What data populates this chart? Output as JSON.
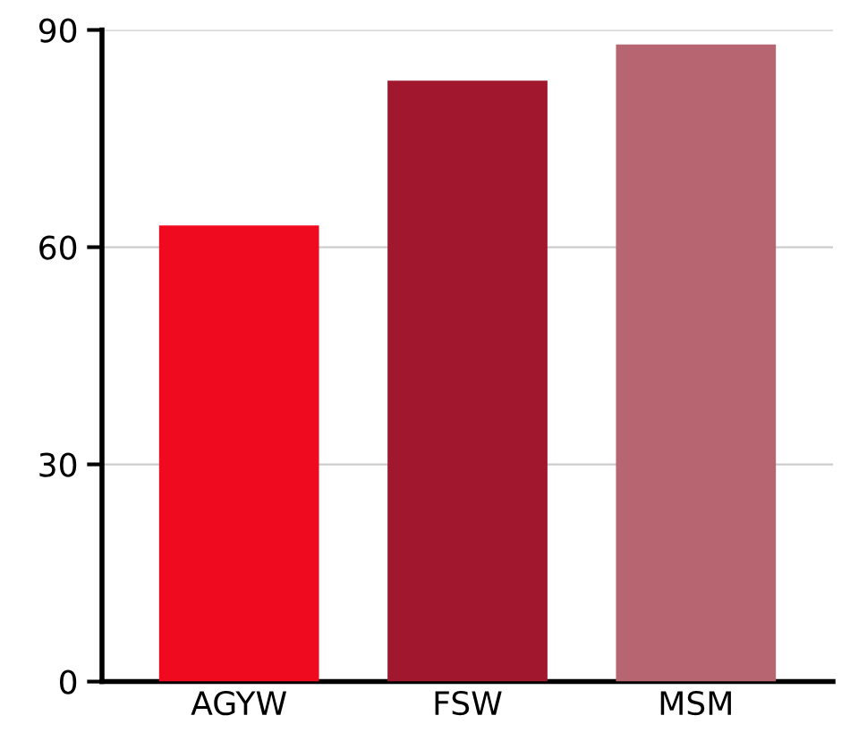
{
  "chart_data": {
    "type": "bar",
    "categories": [
      "AGYW",
      "FSW",
      "MSM"
    ],
    "values": [
      63,
      83,
      88
    ],
    "colors": [
      "#f00a1f",
      "#a0172e",
      "#b76570"
    ],
    "ylim": [
      0,
      90
    ],
    "yticks": [
      0,
      30,
      60,
      90
    ],
    "grid": "y"
  }
}
